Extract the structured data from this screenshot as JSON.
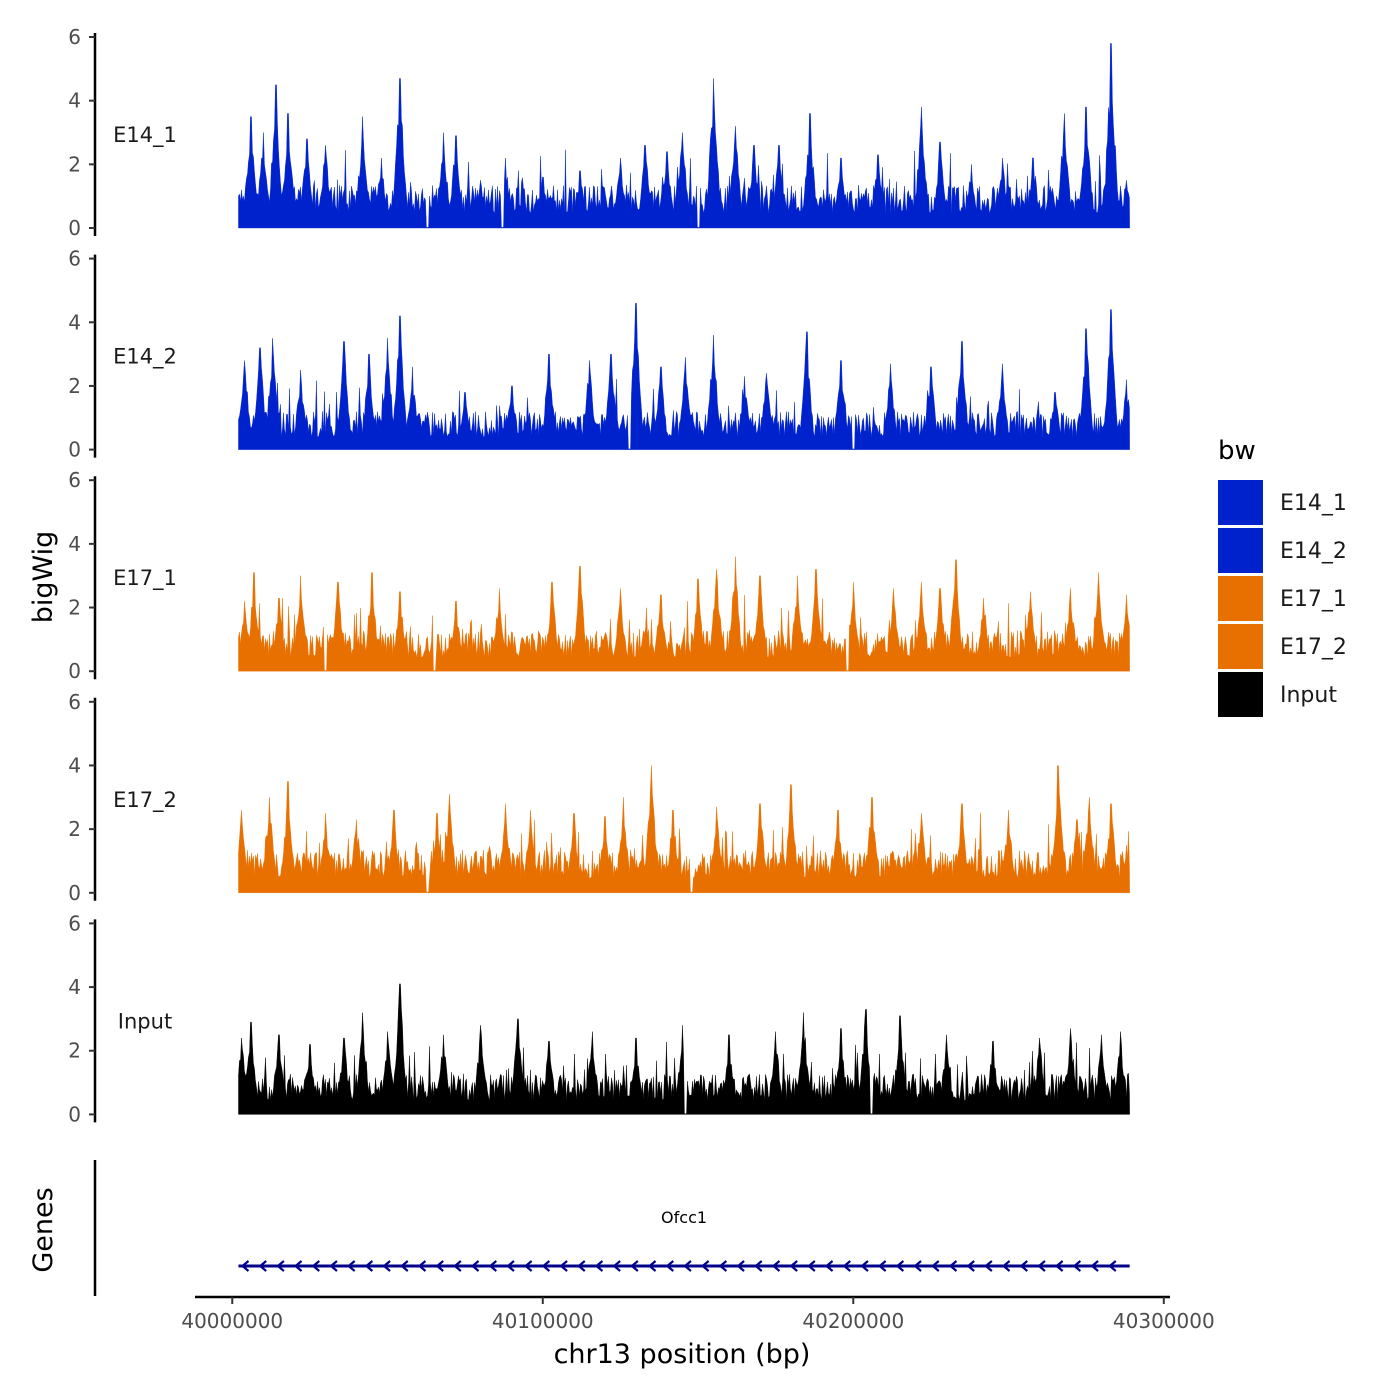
{
  "chart_data": {
    "type": "area",
    "title": "",
    "ylabel": "bigWig",
    "xlabel": "chr13 position (bp)",
    "xlim": [
      39988000,
      40302000
    ],
    "ylim": [
      0,
      6
    ],
    "data_range": [
      40002000,
      40289000
    ],
    "y_ticks": [
      0,
      2,
      4,
      6
    ],
    "x_ticks": [
      40000000,
      40100000,
      40200000,
      40300000
    ],
    "x_tick_labels": [
      "40000000",
      "40100000",
      "40200000",
      "40300000"
    ],
    "legend": {
      "title": "bw",
      "position": "right",
      "entries": [
        {
          "label": "E14_1",
          "color": "#0022CC"
        },
        {
          "label": "E14_2",
          "color": "#0022CC"
        },
        {
          "label": "E17_1",
          "color": "#E87000"
        },
        {
          "label": "E17_2",
          "color": "#E87000"
        },
        {
          "label": "Input",
          "color": "#000000"
        }
      ]
    },
    "series": [
      {
        "name": "E14_1",
        "color": "#0022CC",
        "baseline": 0.9,
        "peaks": [
          {
            "x": 40003000,
            "y": 1.2
          },
          {
            "x": 40006000,
            "y": 3.5
          },
          {
            "x": 40010000,
            "y": 3.0
          },
          {
            "x": 40014000,
            "y": 4.5
          },
          {
            "x": 40018000,
            "y": 3.6
          },
          {
            "x": 40024000,
            "y": 2.8
          },
          {
            "x": 40030000,
            "y": 2.6
          },
          {
            "x": 40042000,
            "y": 3.5
          },
          {
            "x": 40048000,
            "y": 2.2
          },
          {
            "x": 40054000,
            "y": 4.7
          },
          {
            "x": 40063000,
            "y": 1.3
          },
          {
            "x": 40068000,
            "y": 3.0
          },
          {
            "x": 40072000,
            "y": 2.9
          },
          {
            "x": 40080000,
            "y": 1.5
          },
          {
            "x": 40088000,
            "y": 2.2
          },
          {
            "x": 40100000,
            "y": 1.6
          },
          {
            "x": 40112000,
            "y": 1.8
          },
          {
            "x": 40125000,
            "y": 2.2
          },
          {
            "x": 40133000,
            "y": 2.6
          },
          {
            "x": 40140000,
            "y": 2.4
          },
          {
            "x": 40145000,
            "y": 3.0
          },
          {
            "x": 40155000,
            "y": 4.7
          },
          {
            "x": 40162000,
            "y": 3.2
          },
          {
            "x": 40168000,
            "y": 2.6
          },
          {
            "x": 40176000,
            "y": 2.6
          },
          {
            "x": 40186000,
            "y": 3.6
          },
          {
            "x": 40196000,
            "y": 2.2
          },
          {
            "x": 40208000,
            "y": 2.3
          },
          {
            "x": 40222000,
            "y": 3.8
          },
          {
            "x": 40228000,
            "y": 2.7
          },
          {
            "x": 40238000,
            "y": 2.0
          },
          {
            "x": 40248000,
            "y": 2.2
          },
          {
            "x": 40258000,
            "y": 2.2
          },
          {
            "x": 40268000,
            "y": 3.6
          },
          {
            "x": 40275000,
            "y": 3.8
          },
          {
            "x": 40283000,
            "y": 5.8
          },
          {
            "x": 40288000,
            "y": 1.5
          }
        ],
        "dips": [
          40063000,
          40087000,
          40150000
        ]
      },
      {
        "name": "E14_2",
        "color": "#0022CC",
        "baseline": 0.8,
        "peaks": [
          {
            "x": 40004000,
            "y": 2.8
          },
          {
            "x": 40009000,
            "y": 3.2
          },
          {
            "x": 40013000,
            "y": 3.5
          },
          {
            "x": 40022000,
            "y": 2.5
          },
          {
            "x": 40036000,
            "y": 3.4
          },
          {
            "x": 40044000,
            "y": 3.0
          },
          {
            "x": 40050000,
            "y": 3.5
          },
          {
            "x": 40054000,
            "y": 4.2
          },
          {
            "x": 40058000,
            "y": 2.6
          },
          {
            "x": 40075000,
            "y": 1.8
          },
          {
            "x": 40090000,
            "y": 2.0
          },
          {
            "x": 40102000,
            "y": 3.0
          },
          {
            "x": 40115000,
            "y": 2.8
          },
          {
            "x": 40122000,
            "y": 3.0
          },
          {
            "x": 40130000,
            "y": 4.6
          },
          {
            "x": 40138000,
            "y": 2.6
          },
          {
            "x": 40146000,
            "y": 2.9
          },
          {
            "x": 40155000,
            "y": 3.6
          },
          {
            "x": 40165000,
            "y": 2.3
          },
          {
            "x": 40172000,
            "y": 2.4
          },
          {
            "x": 40185000,
            "y": 3.7
          },
          {
            "x": 40196000,
            "y": 2.8
          },
          {
            "x": 40212000,
            "y": 2.7
          },
          {
            "x": 40225000,
            "y": 2.6
          },
          {
            "x": 40235000,
            "y": 3.4
          },
          {
            "x": 40248000,
            "y": 2.7
          },
          {
            "x": 40265000,
            "y": 1.8
          },
          {
            "x": 40275000,
            "y": 3.8
          },
          {
            "x": 40283000,
            "y": 4.4
          },
          {
            "x": 40288000,
            "y": 2.2
          }
        ],
        "dips": [
          40128000,
          40200000
        ]
      },
      {
        "name": "E17_1",
        "color": "#E87000",
        "baseline": 0.85,
        "peaks": [
          {
            "x": 40004000,
            "y": 2.2
          },
          {
            "x": 40007000,
            "y": 3.1
          },
          {
            "x": 40015000,
            "y": 2.3
          },
          {
            "x": 40022000,
            "y": 3.0
          },
          {
            "x": 40034000,
            "y": 2.8
          },
          {
            "x": 40045000,
            "y": 3.1
          },
          {
            "x": 40054000,
            "y": 2.5
          },
          {
            "x": 40072000,
            "y": 2.2
          },
          {
            "x": 40086000,
            "y": 2.6
          },
          {
            "x": 40103000,
            "y": 2.8
          },
          {
            "x": 40112000,
            "y": 3.3
          },
          {
            "x": 40125000,
            "y": 2.6
          },
          {
            "x": 40138000,
            "y": 2.4
          },
          {
            "x": 40150000,
            "y": 2.9
          },
          {
            "x": 40156000,
            "y": 3.2
          },
          {
            "x": 40162000,
            "y": 3.6
          },
          {
            "x": 40170000,
            "y": 3.0
          },
          {
            "x": 40182000,
            "y": 3.0
          },
          {
            "x": 40188000,
            "y": 3.2
          },
          {
            "x": 40200000,
            "y": 2.8
          },
          {
            "x": 40213000,
            "y": 2.6
          },
          {
            "x": 40222000,
            "y": 2.8
          },
          {
            "x": 40228000,
            "y": 2.6
          },
          {
            "x": 40233000,
            "y": 3.5
          },
          {
            "x": 40242000,
            "y": 2.3
          },
          {
            "x": 40257000,
            "y": 2.5
          },
          {
            "x": 40270000,
            "y": 2.6
          },
          {
            "x": 40279000,
            "y": 3.1
          },
          {
            "x": 40288000,
            "y": 2.4
          }
        ],
        "dips": [
          40030000,
          40065000,
          40198000
        ]
      },
      {
        "name": "E17_2",
        "color": "#E87000",
        "baseline": 0.9,
        "peaks": [
          {
            "x": 40003000,
            "y": 2.6
          },
          {
            "x": 40012000,
            "y": 3.0
          },
          {
            "x": 40018000,
            "y": 3.5
          },
          {
            "x": 40030000,
            "y": 2.5
          },
          {
            "x": 40040000,
            "y": 2.3
          },
          {
            "x": 40052000,
            "y": 2.6
          },
          {
            "x": 40066000,
            "y": 2.5
          },
          {
            "x": 40070000,
            "y": 3.1
          },
          {
            "x": 40088000,
            "y": 2.8
          },
          {
            "x": 40096000,
            "y": 2.6
          },
          {
            "x": 40110000,
            "y": 2.5
          },
          {
            "x": 40120000,
            "y": 2.4
          },
          {
            "x": 40126000,
            "y": 3.0
          },
          {
            "x": 40135000,
            "y": 4.0
          },
          {
            "x": 40142000,
            "y": 2.6
          },
          {
            "x": 40156000,
            "y": 2.7
          },
          {
            "x": 40170000,
            "y": 2.8
          },
          {
            "x": 40180000,
            "y": 3.4
          },
          {
            "x": 40195000,
            "y": 2.6
          },
          {
            "x": 40206000,
            "y": 3.0
          },
          {
            "x": 40222000,
            "y": 2.5
          },
          {
            "x": 40235000,
            "y": 2.8
          },
          {
            "x": 40250000,
            "y": 2.6
          },
          {
            "x": 40266000,
            "y": 4.0
          },
          {
            "x": 40272000,
            "y": 2.3
          },
          {
            "x": 40276000,
            "y": 3.0
          },
          {
            "x": 40283000,
            "y": 2.8
          },
          {
            "x": 40288000,
            "y": 1.5
          }
        ],
        "dips": [
          40063000,
          40148000
        ]
      },
      {
        "name": "Input",
        "color": "#000000",
        "baseline": 0.85,
        "peaks": [
          {
            "x": 40003000,
            "y": 2.4
          },
          {
            "x": 40006000,
            "y": 2.9
          },
          {
            "x": 40015000,
            "y": 2.5
          },
          {
            "x": 40025000,
            "y": 2.2
          },
          {
            "x": 40036000,
            "y": 2.4
          },
          {
            "x": 40042000,
            "y": 3.2
          },
          {
            "x": 40050000,
            "y": 2.6
          },
          {
            "x": 40054000,
            "y": 4.1
          },
          {
            "x": 40068000,
            "y": 2.5
          },
          {
            "x": 40080000,
            "y": 2.8
          },
          {
            "x": 40092000,
            "y": 3.0
          },
          {
            "x": 40102000,
            "y": 2.3
          },
          {
            "x": 40116000,
            "y": 2.6
          },
          {
            "x": 40130000,
            "y": 2.4
          },
          {
            "x": 40145000,
            "y": 2.8
          },
          {
            "x": 40160000,
            "y": 2.5
          },
          {
            "x": 40175000,
            "y": 2.6
          },
          {
            "x": 40184000,
            "y": 3.2
          },
          {
            "x": 40196000,
            "y": 2.7
          },
          {
            "x": 40204000,
            "y": 3.3
          },
          {
            "x": 40215000,
            "y": 3.1
          },
          {
            "x": 40230000,
            "y": 2.5
          },
          {
            "x": 40245000,
            "y": 2.3
          },
          {
            "x": 40260000,
            "y": 2.4
          },
          {
            "x": 40270000,
            "y": 2.7
          },
          {
            "x": 40280000,
            "y": 2.5
          },
          {
            "x": 40286000,
            "y": 2.6
          }
        ],
        "dips": [
          40146000,
          40206000
        ]
      }
    ],
    "genes": [
      {
        "name": "Ofcc1",
        "start": 40002000,
        "end": 40289000,
        "strand": "-",
        "color": "#00008B"
      }
    ],
    "gene_track_label": "Genes"
  }
}
